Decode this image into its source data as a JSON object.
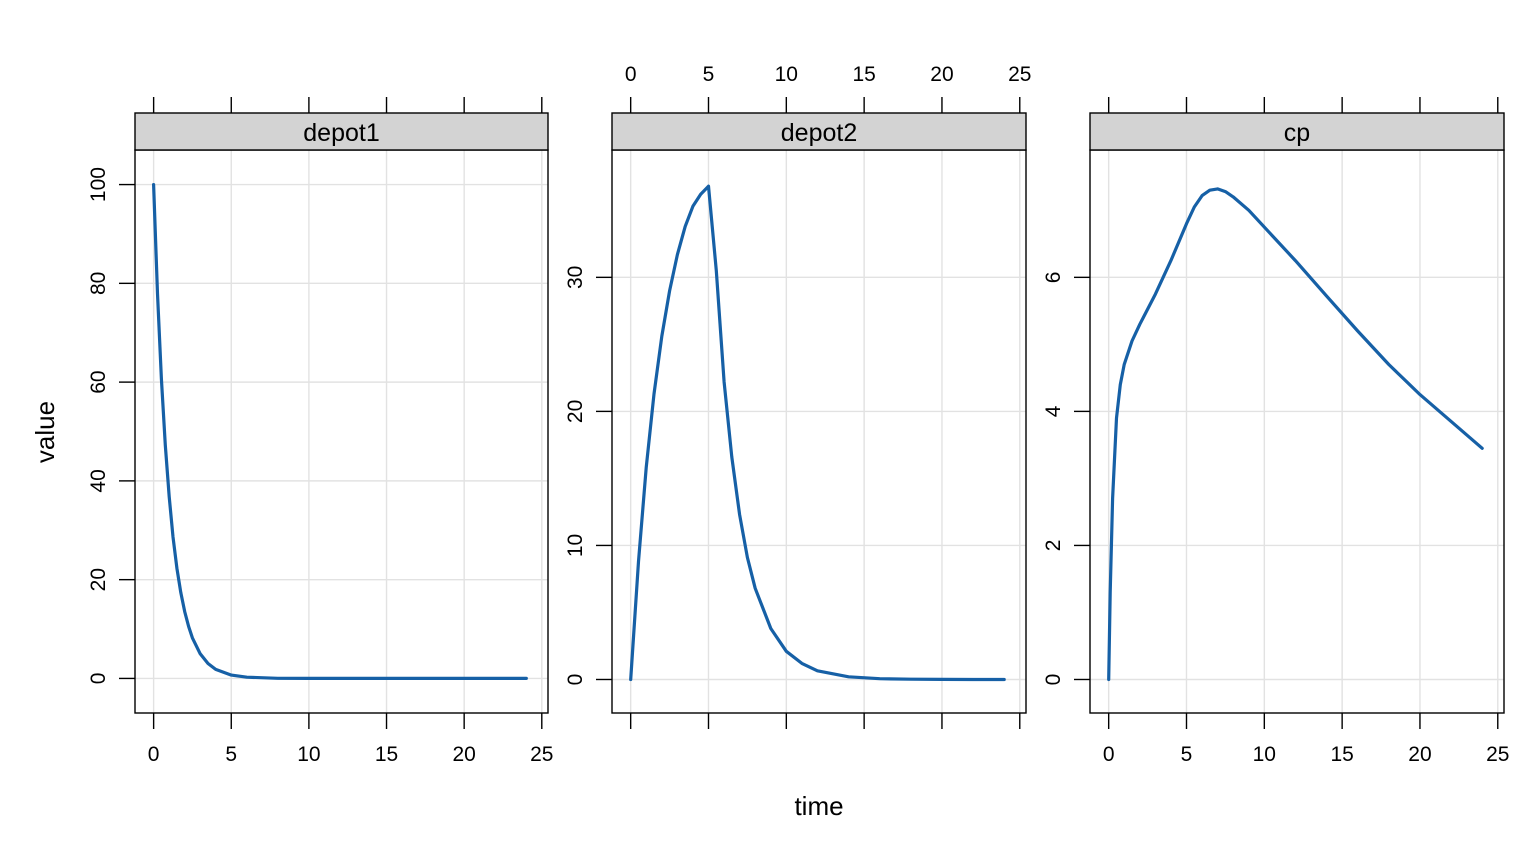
{
  "chart_data": {
    "type": "line",
    "xlabel": "time",
    "ylabel": "value",
    "grid": true,
    "series_color": "#1660a6",
    "strip_color": "#d3d3d3",
    "x_range": [
      -1.2,
      25.4
    ],
    "x_ticks": [
      0,
      5,
      10,
      15,
      20,
      25
    ],
    "panels": [
      {
        "name": "depot1",
        "ylim": [
          -7,
          107
        ],
        "y_ticks": [
          0,
          20,
          40,
          60,
          80,
          100
        ],
        "series": {
          "x": [
            0,
            0.25,
            0.5,
            0.75,
            1,
            1.25,
            1.5,
            1.75,
            2,
            2.25,
            2.5,
            3,
            3.5,
            4,
            5,
            6,
            8,
            10,
            12,
            15,
            18,
            21,
            24
          ],
          "y": [
            100,
            77.9,
            60.65,
            47.24,
            36.79,
            28.65,
            22.31,
            17.38,
            13.53,
            10.54,
            8.21,
            4.98,
            3.02,
            1.83,
            0.67,
            0.25,
            0.03,
            0,
            0,
            0,
            0,
            0,
            0
          ]
        }
      },
      {
        "name": "depot2",
        "ylim": [
          -2.5,
          39.5
        ],
        "y_ticks": [
          0,
          10,
          20,
          30
        ],
        "series": {
          "x": [
            0,
            0.5,
            1,
            1.5,
            2,
            2.5,
            3,
            3.5,
            4,
            4.5,
            5,
            5.5,
            6,
            6.5,
            7,
            7.5,
            8,
            9,
            10,
            11,
            12,
            14,
            16,
            18,
            20,
            22,
            24
          ],
          "y": [
            0,
            8.8,
            15.8,
            21.3,
            25.6,
            29.0,
            31.7,
            33.8,
            35.3,
            36.2,
            36.8,
            30.5,
            22.2,
            16.6,
            12.3,
            9.1,
            6.8,
            3.8,
            2.1,
            1.2,
            0.65,
            0.2,
            0.06,
            0.02,
            0.005,
            0,
            0
          ]
        }
      },
      {
        "name": "cp",
        "ylim": [
          -0.5,
          7.9
        ],
        "y_ticks": [
          0,
          2,
          4,
          6
        ],
        "series": {
          "x": [
            0,
            0.1,
            0.25,
            0.5,
            0.75,
            1,
            1.5,
            2,
            3,
            4,
            5,
            5.5,
            6,
            6.5,
            7,
            7.5,
            8,
            9,
            10,
            12,
            14,
            16,
            18,
            20,
            22,
            24
          ],
          "y": [
            0,
            1.3,
            2.7,
            3.9,
            4.4,
            4.7,
            5.05,
            5.3,
            5.75,
            6.25,
            6.8,
            7.05,
            7.22,
            7.3,
            7.32,
            7.28,
            7.2,
            7.0,
            6.75,
            6.25,
            5.72,
            5.2,
            4.7,
            4.25,
            3.85,
            3.45
          ]
        }
      }
    ]
  }
}
